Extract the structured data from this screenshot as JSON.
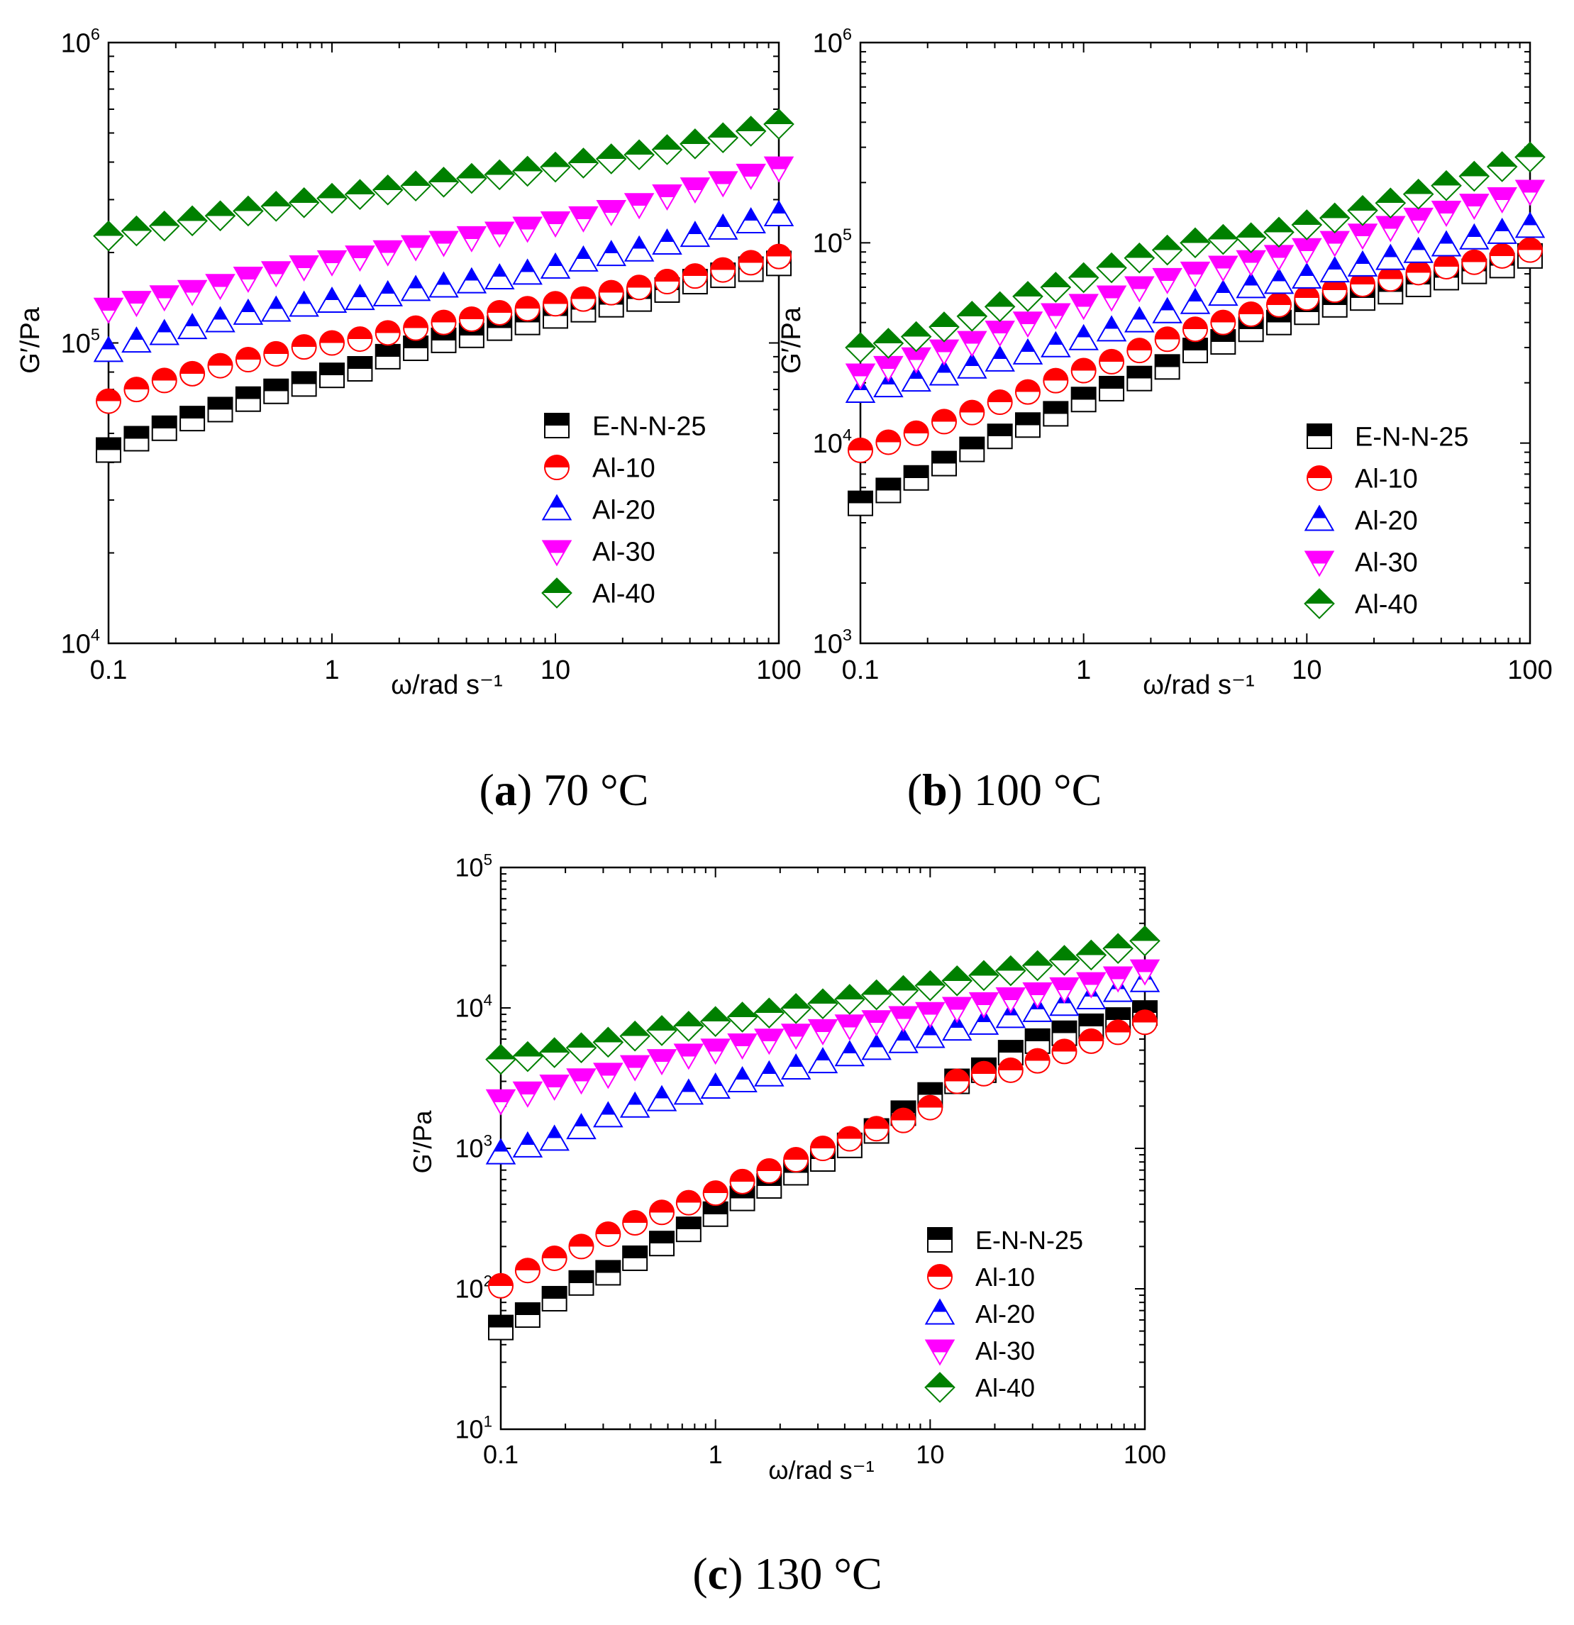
{
  "figure": {
    "panels": [
      {
        "id": "a",
        "caption_letter": "a",
        "caption_text": "70 °C"
      },
      {
        "id": "b",
        "caption_letter": "b",
        "caption_text": "100 °C"
      },
      {
        "id": "c",
        "caption_letter": "c",
        "caption_text": "130 °C"
      }
    ]
  },
  "chart_data": [
    {
      "type": "scatter",
      "panel": "a",
      "title": "(a) 70 °C",
      "xlabel": "ω/rad s⁻¹",
      "ylabel": "G′/Pa",
      "xscale": "log",
      "yscale": "log",
      "xlim": [
        0.1,
        100
      ],
      "ylim": [
        10000,
        1000000
      ],
      "xticks": [
        {
          "v": 0.1,
          "label": "0.1"
        },
        {
          "v": 1,
          "label": "1"
        },
        {
          "v": 10,
          "label": "10"
        },
        {
          "v": 100,
          "label": "100"
        }
      ],
      "yticks": [
        {
          "v": 10000,
          "base": "10",
          "exp": "4"
        },
        {
          "v": 100000,
          "base": "10",
          "exp": "5"
        },
        {
          "v": 1000000,
          "base": "10",
          "exp": "6"
        }
      ],
      "legend_position": "bottom-right",
      "x": [
        0.1,
        0.1334,
        0.1778,
        0.2371,
        0.3162,
        0.4217,
        0.5623,
        0.7499,
        1,
        1.334,
        1.778,
        2.371,
        3.162,
        4.217,
        5.623,
        7.499,
        10,
        13.34,
        17.78,
        23.71,
        31.62,
        42.17,
        56.23,
        74.99,
        100
      ],
      "series": [
        {
          "name": "E-N-N-25",
          "marker": "square",
          "color": "#000000",
          "values": [
            44000,
            48000,
            52000,
            56000,
            60000,
            65000,
            69000,
            73000,
            78000,
            82000,
            90000,
            96000,
            102000,
            106000,
            112000,
            117000,
            123000,
            129000,
            134000,
            140000,
            150000,
            160000,
            168000,
            176000,
            184000
          ]
        },
        {
          "name": "Al-10",
          "marker": "circle",
          "color": "#ff0000",
          "values": [
            64000,
            70000,
            75000,
            79000,
            84000,
            88000,
            92000,
            97000,
            100000,
            103000,
            108000,
            112000,
            117000,
            120000,
            126000,
            130000,
            135000,
            140000,
            147000,
            153000,
            160000,
            167000,
            175000,
            185000,
            194000
          ]
        },
        {
          "name": "Al-20",
          "marker": "triangle-up",
          "color": "#0000ff",
          "values": [
            94000,
            101000,
            107000,
            112000,
            118000,
            125000,
            128000,
            133000,
            137000,
            140000,
            144000,
            150000,
            154000,
            159000,
            164000,
            170000,
            178000,
            188000,
            196000,
            203000,
            214000,
            227000,
            240000,
            252000,
            266000
          ]
        },
        {
          "name": "Al-30",
          "marker": "triangle-down",
          "color": "#ff00ff",
          "values": [
            130000,
            137000,
            143000,
            149000,
            156000,
            165000,
            172000,
            180000,
            187000,
            194000,
            202000,
            210000,
            217000,
            225000,
            233000,
            242000,
            252000,
            262000,
            275000,
            290000,
            310000,
            327000,
            343000,
            363000,
            384000
          ]
        },
        {
          "name": "Al-40",
          "marker": "diamond",
          "color": "#008000",
          "values": [
            227000,
            236000,
            245000,
            255000,
            265000,
            275000,
            285000,
            293000,
            303000,
            312000,
            323000,
            333000,
            343000,
            353000,
            363000,
            373000,
            385000,
            397000,
            410000,
            423000,
            440000,
            460000,
            482000,
            507000,
            535000
          ]
        }
      ]
    },
    {
      "type": "scatter",
      "panel": "b",
      "title": "(b) 100 °C",
      "xlabel": "ω/rad s⁻¹",
      "ylabel": "G′/Pa",
      "xscale": "log",
      "yscale": "log",
      "xlim": [
        0.1,
        100
      ],
      "ylim": [
        1000,
        1000000
      ],
      "xticks": [
        {
          "v": 0.1,
          "label": "0.1"
        },
        {
          "v": 1,
          "label": "1"
        },
        {
          "v": 10,
          "label": "10"
        },
        {
          "v": 100,
          "label": "100"
        }
      ],
      "yticks": [
        {
          "v": 1000,
          "base": "10",
          "exp": "3"
        },
        {
          "v": 10000,
          "base": "10",
          "exp": "4"
        },
        {
          "v": 100000,
          "base": "10",
          "exp": "5"
        },
        {
          "v": 1000000,
          "base": "10",
          "exp": "6"
        }
      ],
      "legend_position": "bottom-right",
      "x": [
        0.1,
        0.1334,
        0.1778,
        0.2371,
        0.3162,
        0.4217,
        0.5623,
        0.7499,
        1,
        1.334,
        1.778,
        2.371,
        3.162,
        4.217,
        5.623,
        7.499,
        10,
        13.34,
        17.78,
        23.71,
        31.62,
        42.17,
        56.23,
        74.99,
        100
      ],
      "series": [
        {
          "name": "E-N-N-25",
          "marker": "square",
          "color": "#000000",
          "values": [
            5000,
            5800,
            6700,
            7900,
            9300,
            10800,
            12300,
            14000,
            16500,
            18700,
            21000,
            24000,
            29000,
            32000,
            37000,
            40000,
            45000,
            49000,
            53000,
            57000,
            62000,
            67000,
            72000,
            77000,
            86000
          ]
        },
        {
          "name": "Al-10",
          "marker": "circle",
          "color": "#ff0000",
          "values": [
            9200,
            10100,
            11200,
            12800,
            14200,
            16000,
            18000,
            20500,
            23000,
            25500,
            29000,
            33000,
            37000,
            40000,
            44000,
            49000,
            53000,
            58000,
            62000,
            66000,
            71000,
            76000,
            80000,
            86000,
            92000
          ]
        },
        {
          "name": "Al-20",
          "marker": "triangle-up",
          "color": "#0000ff",
          "values": [
            18000,
            19200,
            20500,
            22000,
            23800,
            25800,
            28000,
            30400,
            33000,
            36500,
            40500,
            45000,
            50000,
            55000,
            60000,
            63000,
            67000,
            72000,
            77000,
            83000,
            90000,
            97000,
            105000,
            112000,
            120000
          ]
        },
        {
          "name": "Al-30",
          "marker": "triangle-down",
          "color": "#ff00ff",
          "values": [
            22000,
            24000,
            26500,
            29000,
            32000,
            36000,
            40000,
            44000,
            49000,
            54000,
            60000,
            66000,
            71000,
            76000,
            81000,
            86000,
            93000,
            101000,
            110000,
            120000,
            132000,
            143000,
            155000,
            167000,
            182000
          ]
        },
        {
          "name": "Al-40",
          "marker": "diamond",
          "color": "#008000",
          "values": [
            30000,
            31500,
            34000,
            38000,
            43000,
            48000,
            54000,
            60000,
            67000,
            75000,
            84000,
            92000,
            100000,
            104000,
            106000,
            113000,
            123000,
            133000,
            145000,
            158000,
            175000,
            193000,
            215000,
            240000,
            268000
          ]
        }
      ]
    },
    {
      "type": "scatter",
      "panel": "c",
      "title": "(c) 130 °C",
      "xlabel": "ω/rad s⁻¹",
      "ylabel": "G′/Pa",
      "xscale": "log",
      "yscale": "log",
      "xlim": [
        0.1,
        100
      ],
      "ylim": [
        10,
        100000
      ],
      "xticks": [
        {
          "v": 0.1,
          "label": "0.1"
        },
        {
          "v": 1,
          "label": "1"
        },
        {
          "v": 10,
          "label": "10"
        },
        {
          "v": 100,
          "label": "100"
        }
      ],
      "yticks": [
        {
          "v": 10,
          "base": "10",
          "exp": "1"
        },
        {
          "v": 100,
          "base": "10",
          "exp": "2"
        },
        {
          "v": 1000,
          "base": "10",
          "exp": "3"
        },
        {
          "v": 10000,
          "base": "10",
          "exp": "4"
        },
        {
          "v": 100000,
          "base": "10",
          "exp": "5"
        }
      ],
      "legend_position": "bottom-right",
      "x": [
        0.1,
        0.1334,
        0.1778,
        0.2371,
        0.3162,
        0.4217,
        0.5623,
        0.7499,
        1,
        1.334,
        1.778,
        2.371,
        3.162,
        4.217,
        5.623,
        7.499,
        10,
        13.34,
        17.78,
        23.71,
        31.62,
        42.17,
        56.23,
        74.99,
        100
      ],
      "series": [
        {
          "name": "E-N-N-25",
          "marker": "square",
          "color": "#000000",
          "values": [
            53,
            65,
            85,
            110,
            130,
            165,
            210,
            265,
            340,
            440,
            540,
            670,
            840,
            1050,
            1330,
            1780,
            2400,
            3000,
            3600,
            4800,
            5800,
            6600,
            7400,
            8200,
            9200
          ]
        },
        {
          "name": "Al-10",
          "marker": "circle",
          "color": "#ff0000",
          "values": [
            105,
            135,
            165,
            200,
            245,
            295,
            350,
            410,
            480,
            580,
            690,
            830,
            1000,
            1170,
            1380,
            1580,
            1950,
            3000,
            3400,
            3600,
            4200,
            4900,
            5800,
            6700,
            7900
          ]
        },
        {
          "name": "Al-20",
          "marker": "triangle-up",
          "color": "#0000ff",
          "values": [
            920,
            1030,
            1150,
            1390,
            1690,
            1980,
            2200,
            2450,
            2700,
            3000,
            3300,
            3700,
            4100,
            4600,
            5100,
            5700,
            6200,
            7000,
            7700,
            8600,
            9500,
            10500,
            11700,
            13200,
            15500
          ]
        },
        {
          "name": "Al-30",
          "marker": "triangle-down",
          "color": "#ff00ff",
          "values": [
            2200,
            2500,
            2800,
            3100,
            3400,
            3850,
            4250,
            4650,
            5050,
            5500,
            5950,
            6450,
            6950,
            7500,
            8050,
            8600,
            9200,
            10000,
            10800,
            11700,
            12700,
            13800,
            15000,
            16500,
            18500
          ]
        },
        {
          "name": "Al-40",
          "marker": "diamond",
          "color": "#008000",
          "values": [
            4300,
            4500,
            4800,
            5200,
            5700,
            6300,
            6900,
            7400,
            8000,
            8600,
            9200,
            9900,
            10700,
            11500,
            12400,
            13300,
            14400,
            15600,
            17000,
            18400,
            20000,
            21800,
            23800,
            26500,
            30000
          ]
        }
      ]
    }
  ]
}
